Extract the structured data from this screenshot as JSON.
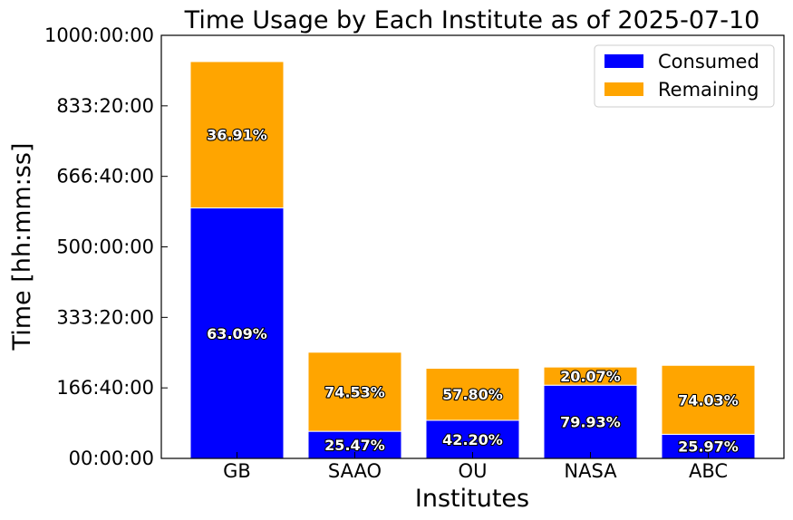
{
  "chart_data": {
    "type": "bar",
    "stacked": true,
    "title": "Time Usage by Each Institute as of 2025-07-10",
    "xlabel": "Institutes",
    "ylabel": "Time [hh:mm:ss]",
    "categories": [
      "GB",
      "SAAO",
      "OU",
      "NASA",
      "ABC"
    ],
    "y_unit": "hours",
    "ylim": [
      0,
      1000
    ],
    "y_ticks": [
      0,
      166.667,
      333.333,
      500,
      666.667,
      833.333,
      1000
    ],
    "y_tick_labels": [
      "00:00:00",
      "166:40:00",
      "333:20:00",
      "500:00:00",
      "666:40:00",
      "833:20:00",
      "1000:00:00"
    ],
    "series": [
      {
        "name": "Consumed",
        "color": "#0000ff",
        "values": [
          592,
          64,
          90,
          173,
          57
        ],
        "labels": [
          "63.09%",
          "25.47%",
          "42.20%",
          "79.93%",
          "25.97%"
        ]
      },
      {
        "name": "Remaining",
        "color": "#ffa500",
        "values": [
          346,
          187,
          123,
          43,
          163
        ],
        "labels": [
          "36.91%",
          "74.53%",
          "57.80%",
          "20.07%",
          "74.03%"
        ]
      }
    ],
    "legend_position": "top-right",
    "grid": false
  }
}
